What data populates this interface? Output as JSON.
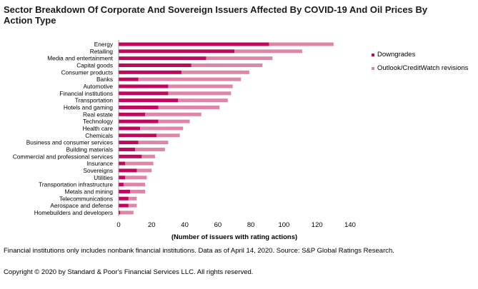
{
  "chart_data": {
    "type": "bar",
    "orientation": "horizontal",
    "stacked": true,
    "title": "Sector Breakdown Of Corporate And Sovereign Issuers Affected By COVID-19 And Oil Prices By Action Type",
    "xlabel": "(Number of issuers with rating actions)",
    "ylabel": "",
    "xlim": [
      0,
      140
    ],
    "xticks": [
      0,
      20,
      40,
      60,
      80,
      100,
      120,
      140
    ],
    "grid": false,
    "legend_position": "right",
    "categories": [
      "Energy",
      "Retailing",
      "Media and entertainment",
      "Capital goods",
      "Consumer products",
      "Banks",
      "Automotive",
      "Financial institutions",
      "Transportation",
      "Hotels and gaming",
      "Real estate",
      "Technology",
      "Health care",
      "Chemicals",
      "Business and consumer services",
      "Building materials",
      "Commercial and professional services",
      "Insurance",
      "Sovereigns",
      "Utilities",
      "Transportation infrastructure",
      "Metals and mining",
      "Telecommunications",
      "Aerospace and defense",
      "Homebuilders and developers"
    ],
    "series": [
      {
        "name": "Downgrades",
        "color": "#c0095e",
        "values": [
          91,
          70,
          53,
          44,
          38,
          12,
          30,
          30,
          36,
          24,
          16,
          24,
          13,
          23,
          12,
          10,
          14,
          4,
          11,
          4,
          3,
          7,
          6,
          6,
          1
        ]
      },
      {
        "name": "Outlook/CreditWatch revisions",
        "color": "#dd86a8",
        "values": [
          39,
          41,
          40,
          43,
          41,
          62,
          39,
          38,
          30,
          37,
          34,
          19,
          26,
          14,
          18,
          18,
          8,
          17,
          9,
          13,
          13,
          9,
          5,
          5,
          8
        ]
      }
    ]
  },
  "footnotes": {
    "note": " Financial institutions only includes nonbank financial institutions. Data as of April 14, 2020. Source: S&P Global Ratings Research.",
    "copyright": "Copyright © 2020 by Standard & Poor's Financial Services LLC. All rights reserved."
  }
}
